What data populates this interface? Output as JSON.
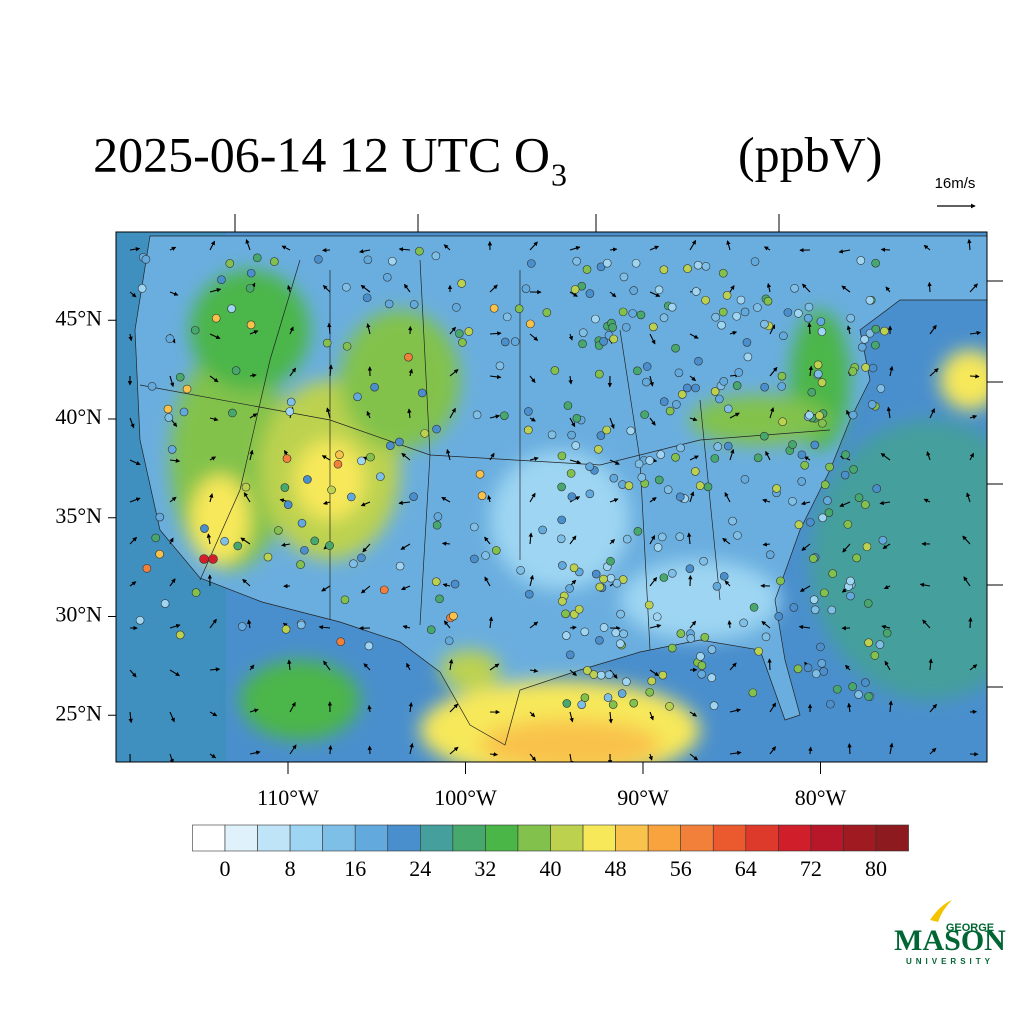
{
  "header": {
    "title_main": "2025-06-14 12 UTC O",
    "title_sub": "3",
    "title_unit": "(ppbV)",
    "vector_reference": "16m/s"
  },
  "map": {
    "lat_labels": [
      {
        "value": 45,
        "label": "45°N"
      },
      {
        "value": 40,
        "label": "40°N"
      },
      {
        "value": 35,
        "label": "35°N"
      },
      {
        "value": 30,
        "label": "30°N"
      },
      {
        "value": 25,
        "label": "25°N"
      }
    ],
    "lon_labels": [
      {
        "value": -110,
        "label": "110°W"
      },
      {
        "value": -100,
        "label": "100°W"
      },
      {
        "value": -90,
        "label": "90°W"
      },
      {
        "value": -80,
        "label": "80°W"
      }
    ]
  },
  "colorbar": {
    "levels": [
      0,
      4,
      8,
      12,
      16,
      20,
      24,
      28,
      32,
      36,
      40,
      44,
      48,
      52,
      56,
      60,
      64,
      68,
      72,
      76,
      80
    ],
    "ticks": [
      0,
      8,
      16,
      24,
      32,
      40,
      48,
      56,
      64,
      72,
      80
    ],
    "colors": [
      "#ffffff",
      "#dff1fb",
      "#bfe4f7",
      "#9dd5f2",
      "#7ebfe8",
      "#62a9de",
      "#4a8fcd",
      "#459f9c",
      "#46a86c",
      "#4bb648",
      "#82c24c",
      "#bcd24f",
      "#f7e85a",
      "#f9c24b",
      "#f8a33e",
      "#f3803a",
      "#eb5a2f",
      "#de3a2b",
      "#d01f2a",
      "#b8172a",
      "#a01a22",
      "#8c1a1e"
    ]
  },
  "logo": {
    "top": "GEORGE",
    "name": "MASON",
    "bottom": "UNIVERSITY"
  }
}
